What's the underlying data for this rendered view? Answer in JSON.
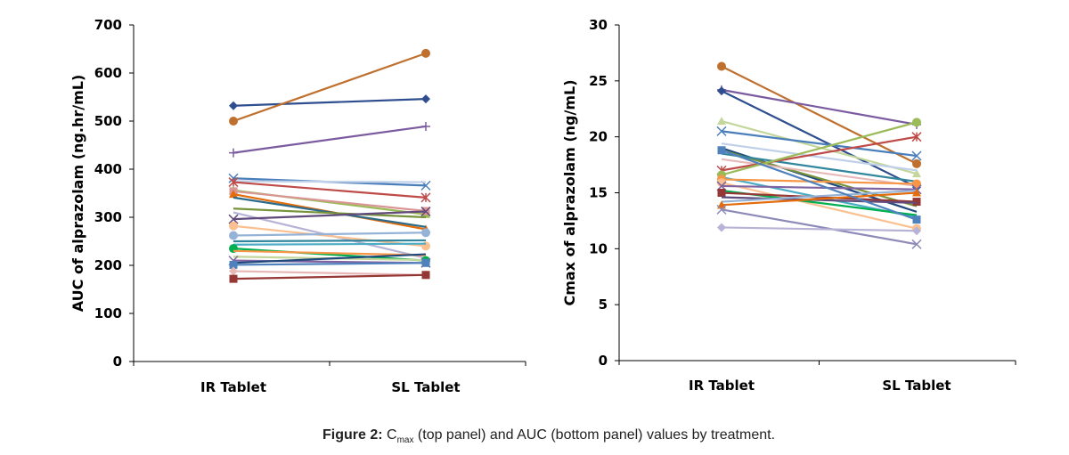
{
  "caption": {
    "label": "Figure 2:",
    "symbol": "C",
    "subscript": "max",
    "text": " (top panel) and AUC (bottom panel) values by treatment."
  },
  "chart_data": [
    {
      "type": "line",
      "panel": "left",
      "ylabel": "AUC  of alprazolam  (ng.hr/mL)",
      "xlabel": "",
      "categories": [
        "IR Tablet",
        "SL Tablet"
      ],
      "ylim": [
        0,
        700
      ],
      "yticks": [
        0,
        100,
        200,
        300,
        400,
        500,
        600,
        700
      ],
      "grid": false,
      "series": [
        {
          "values": [
            532,
            546
          ],
          "color": "#2E4E8F",
          "marker": "diamond"
        },
        {
          "values": [
            500,
            641
          ],
          "color": "#C0702E",
          "marker": "circle"
        },
        {
          "values": [
            434,
            489
          ],
          "color": "#7B5BA0",
          "marker": "plus"
        },
        {
          "values": [
            381,
            366
          ],
          "color": "#4A7EBB",
          "marker": "x"
        },
        {
          "values": [
            375,
            373
          ],
          "color": "#BFD0E8",
          "marker": "none"
        },
        {
          "values": [
            373,
            341
          ],
          "color": "#BE4B48",
          "marker": "star"
        },
        {
          "values": [
            356,
            306
          ],
          "color": "#9BBB59",
          "marker": "triangle"
        },
        {
          "values": [
            354,
            313
          ],
          "color": "#D99694",
          "marker": "square"
        },
        {
          "values": [
            348,
            275
          ],
          "color": "#E46C0A",
          "marker": "triangle"
        },
        {
          "values": [
            341,
            280
          ],
          "color": "#2C6B8A",
          "marker": "none"
        },
        {
          "values": [
            318,
            300
          ],
          "color": "#77933C",
          "marker": "none"
        },
        {
          "values": [
            310,
            215
          ],
          "color": "#B7B3D6",
          "marker": "none"
        },
        {
          "values": [
            296,
            312
          ],
          "color": "#604A7B",
          "marker": "x"
        },
        {
          "values": [
            282,
            240
          ],
          "color": "#FAC090",
          "marker": "circle"
        },
        {
          "values": [
            262,
            268
          ],
          "color": "#95B3D7",
          "marker": "circle"
        },
        {
          "values": [
            250,
            252
          ],
          "color": "#31859C",
          "marker": "none"
        },
        {
          "values": [
            243,
            245
          ],
          "color": "#4BACC6",
          "marker": "none"
        },
        {
          "values": [
            235,
            210
          ],
          "color": "#00B050",
          "marker": "circle"
        },
        {
          "values": [
            230,
            221
          ],
          "color": "#F79646",
          "marker": "none"
        },
        {
          "values": [
            218,
            211
          ],
          "color": "#C3D69B",
          "marker": "none"
        },
        {
          "values": [
            210,
            205
          ],
          "color": "#8064A2",
          "marker": "x"
        },
        {
          "values": [
            205,
            223
          ],
          "color": "#1F497D",
          "marker": "none"
        },
        {
          "values": [
            201,
            205
          ],
          "color": "#4F81BD",
          "marker": "square"
        },
        {
          "values": [
            188,
            180
          ],
          "color": "#E6B9B8",
          "marker": "diamond"
        },
        {
          "values": [
            172,
            180
          ],
          "color": "#953735",
          "marker": "square"
        }
      ]
    },
    {
      "type": "line",
      "panel": "right",
      "ylabel": "Cmax  of alprazolam  (ng/mL)",
      "xlabel": "",
      "categories": [
        "IR Tablet",
        "SL Tablet"
      ],
      "ylim": [
        0,
        30
      ],
      "yticks": [
        0,
        5,
        10,
        15,
        20,
        25,
        30
      ],
      "grid": false,
      "series": [
        {
          "values": [
            26.3,
            17.6
          ],
          "color": "#C0702E",
          "marker": "circle"
        },
        {
          "values": [
            24.2,
            21.1
          ],
          "color": "#7B5BA0",
          "marker": "plus"
        },
        {
          "values": [
            24.1,
            15.5
          ],
          "color": "#2E4E8F",
          "marker": "diamond"
        },
        {
          "values": [
            21.4,
            16.7
          ],
          "color": "#C3D69B",
          "marker": "triangle"
        },
        {
          "values": [
            20.5,
            18.3
          ],
          "color": "#4A7EBB",
          "marker": "x"
        },
        {
          "values": [
            19.4,
            17.0
          ],
          "color": "#BFD0E8",
          "marker": "none"
        },
        {
          "values": [
            19.0,
            13.3
          ],
          "color": "#1F497D",
          "marker": "none"
        },
        {
          "values": [
            18.8,
            13.8
          ],
          "color": "#77933C",
          "marker": "none"
        },
        {
          "values": [
            18.5,
            16.0
          ],
          "color": "#31859C",
          "marker": "none"
        },
        {
          "values": [
            18.0,
            15.6
          ],
          "color": "#E6B9B8",
          "marker": "none"
        },
        {
          "values": [
            17.0,
            20.0
          ],
          "color": "#BE4B48",
          "marker": "star"
        },
        {
          "values": [
            16.6,
            21.3
          ],
          "color": "#9BBB59",
          "marker": "circle"
        },
        {
          "values": [
            16.4,
            12.8
          ],
          "color": "#4BACC6",
          "marker": "none"
        },
        {
          "values": [
            16.2,
            15.8
          ],
          "color": "#F79646",
          "marker": "circle"
        },
        {
          "values": [
            15.9,
            11.8
          ],
          "color": "#FAC090",
          "marker": "circle"
        },
        {
          "values": [
            15.6,
            15.3
          ],
          "color": "#8064A2",
          "marker": "x"
        },
        {
          "values": [
            15.2,
            13.0
          ],
          "color": "#00B050",
          "marker": "none"
        },
        {
          "values": [
            15.0,
            14.2
          ],
          "color": "#953735",
          "marker": "square"
        },
        {
          "values": [
            14.6,
            14.1
          ],
          "color": "#604A7B",
          "marker": "none"
        },
        {
          "values": [
            14.2,
            15.2
          ],
          "color": "#95B3D7",
          "marker": "none"
        },
        {
          "values": [
            13.9,
            15.0
          ],
          "color": "#E46C0A",
          "marker": "triangle"
        },
        {
          "values": [
            13.5,
            10.4
          ],
          "color": "#8E8AB8",
          "marker": "x"
        },
        {
          "values": [
            11.9,
            11.6
          ],
          "color": "#B7B3D6",
          "marker": "diamond"
        },
        {
          "values": [
            18.8,
            12.6
          ],
          "color": "#4F81BD",
          "marker": "square"
        }
      ]
    }
  ]
}
